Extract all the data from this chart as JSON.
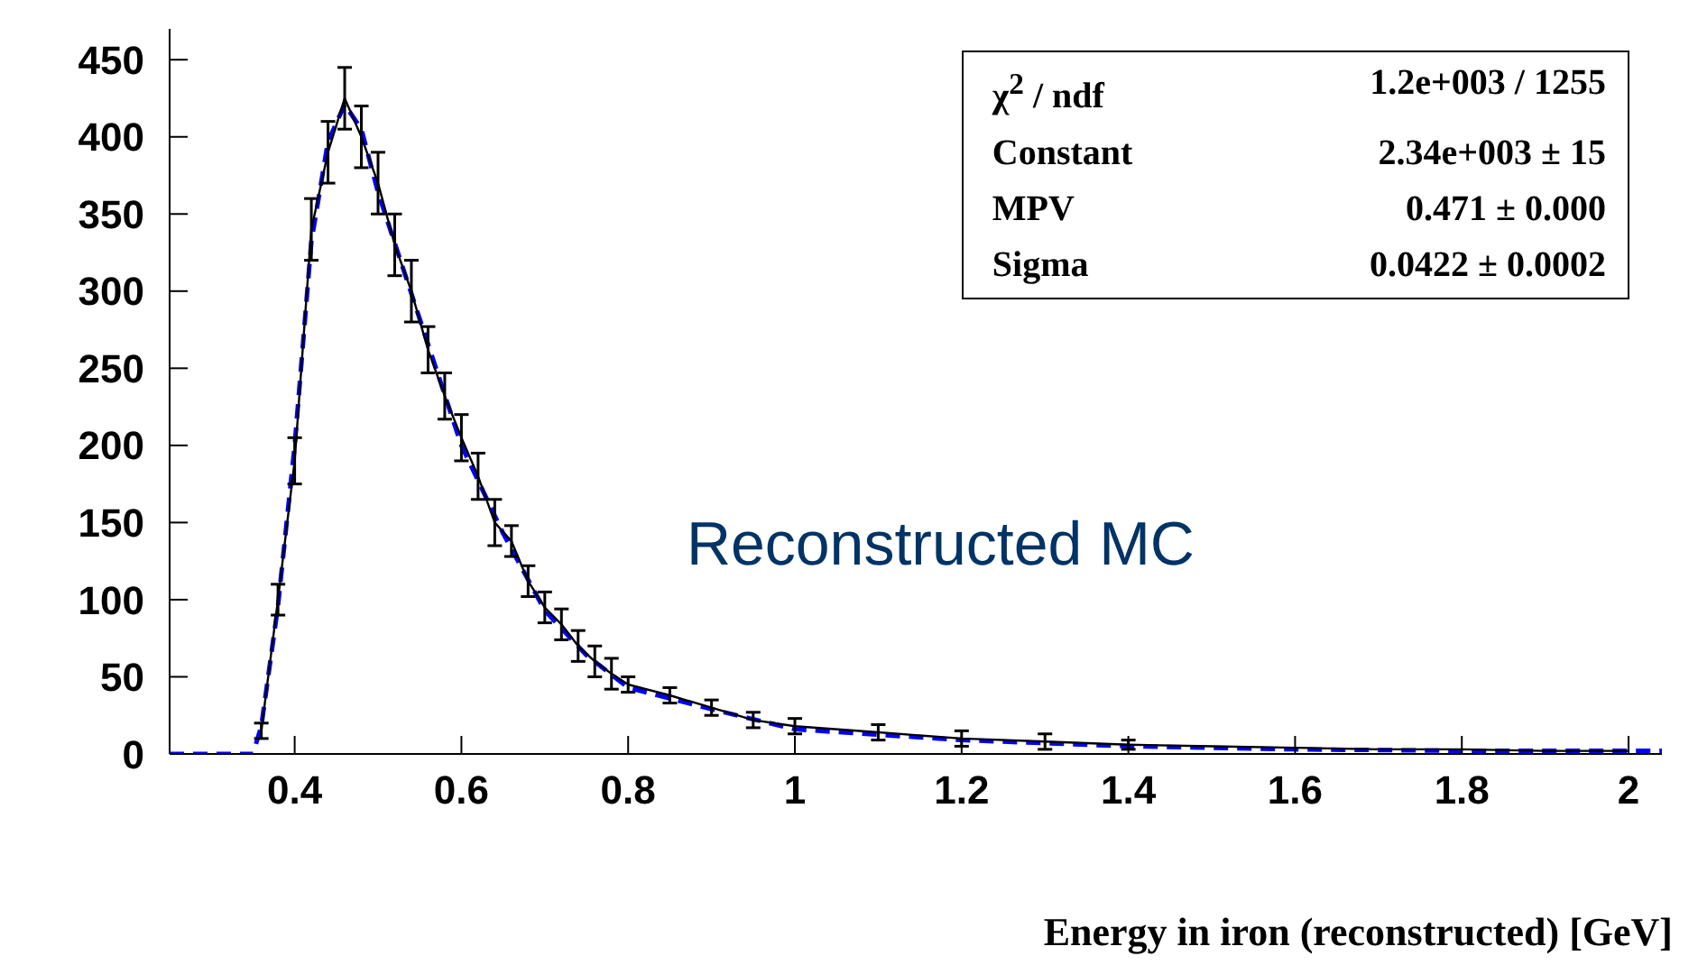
{
  "chart_data": {
    "type": "line",
    "xlabel": "Energy in iron (reconstructed) [GeV]",
    "xlim": [
      0.25,
      2.04
    ],
    "xticks": [
      0.4,
      0.6,
      0.8,
      1,
      1.2,
      1.4,
      1.6,
      1.8,
      2
    ],
    "ylim": [
      0,
      470
    ],
    "yticks": [
      0,
      50,
      100,
      150,
      200,
      250,
      300,
      350,
      400,
      450
    ],
    "marker": "none",
    "series": [
      {
        "color": "#000000",
        "line_style": "solid",
        "x": [
          0.36,
          0.38,
          0.4,
          0.42,
          0.44,
          0.46,
          0.48,
          0.5,
          0.52,
          0.54,
          0.56,
          0.58,
          0.6,
          0.62,
          0.64,
          0.66,
          0.68,
          0.7,
          0.72,
          0.74,
          0.76,
          0.78,
          0.8,
          0.85,
          0.9,
          0.95,
          1.0,
          1.1,
          1.2,
          1.3,
          1.4,
          1.5,
          1.6,
          1.7,
          1.8,
          1.9,
          2.0
        ],
        "values": [
          15,
          100,
          190,
          340,
          390,
          425,
          400,
          370,
          330,
          300,
          262,
          232,
          205,
          180,
          150,
          138,
          112,
          95,
          84,
          70,
          60,
          52,
          45,
          38,
          30,
          22,
          18,
          14,
          10,
          8,
          6,
          5,
          4,
          3,
          3,
          2,
          2
        ],
        "errors": [
          5,
          10,
          15,
          20,
          20,
          20,
          20,
          20,
          20,
          20,
          15,
          15,
          15,
          15,
          15,
          10,
          10,
          10,
          10,
          10,
          10,
          10,
          5,
          5,
          5,
          5,
          5,
          5,
          5,
          5,
          3,
          null,
          null,
          null,
          null,
          null,
          null
        ]
      },
      {
        "color": "#0000ff",
        "line_style": "dashed",
        "x": [
          0.25,
          0.3,
          0.35,
          0.36,
          0.38,
          0.4,
          0.42,
          0.44,
          0.46,
          0.48,
          0.5,
          0.55,
          0.6,
          0.65,
          0.7,
          0.75,
          0.8,
          0.9,
          1.0,
          1.2,
          1.4,
          1.6,
          1.8,
          2.0,
          2.04
        ],
        "values": [
          0,
          0,
          0,
          18,
          96,
          200,
          332,
          397,
          421,
          405,
          364,
          282,
          200,
          143,
          93,
          64,
          43,
          29,
          16,
          9,
          5,
          3,
          2,
          2,
          2
        ]
      }
    ],
    "annotations": [
      "χ$^{2}$ / ndf",
      "1.2e+003 / 1255",
      "Constant",
      "2.34e+003 ± 15",
      "MPV",
      "0.471 ± 0.000",
      "Sigma",
      "0.0422 ± 0.0002",
      "Reconstructed MC"
    ]
  }
}
